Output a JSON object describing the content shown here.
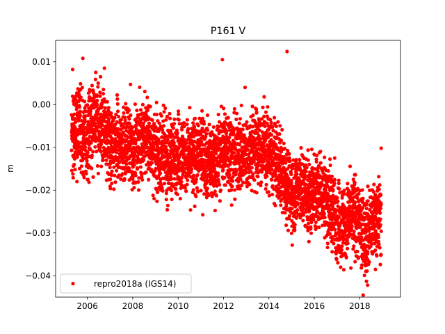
{
  "chart_data": {
    "type": "scatter",
    "title": "P161 V",
    "xlabel": "",
    "ylabel": "m",
    "xlim": [
      2004.6,
      2019.8
    ],
    "ylim": [
      -0.045,
      0.015
    ],
    "x_ticks": [
      2006,
      2008,
      2010,
      2012,
      2014,
      2016,
      2018
    ],
    "x_tick_labels": [
      "2006",
      "2008",
      "2010",
      "2012",
      "2014",
      "2016",
      "2018"
    ],
    "y_ticks": [
      0.01,
      0.0,
      -0.01,
      -0.02,
      -0.03,
      -0.04
    ],
    "y_tick_labels": [
      "0.01",
      "0.00",
      "−0.01",
      "−0.02",
      "−0.03",
      "−0.04"
    ],
    "grid": false,
    "legend_position": "lower-left",
    "series": [
      {
        "name": "repro2018a (IGS14)",
        "color": "#ff0000",
        "marker": "circle",
        "trend": [
          [
            2005.35,
            -0.007
          ],
          [
            2005.6,
            -0.004
          ],
          [
            2005.9,
            -0.009
          ],
          [
            2006.3,
            -0.003
          ],
          [
            2006.7,
            -0.006
          ],
          [
            2007.1,
            -0.011
          ],
          [
            2007.5,
            -0.009
          ],
          [
            2008.0,
            -0.011
          ],
          [
            2008.5,
            -0.007
          ],
          [
            2009.0,
            -0.011
          ],
          [
            2009.5,
            -0.013
          ],
          [
            2010.0,
            -0.011
          ],
          [
            2010.5,
            -0.013
          ],
          [
            2011.0,
            -0.011
          ],
          [
            2011.5,
            -0.014
          ],
          [
            2012.0,
            -0.01
          ],
          [
            2012.5,
            -0.012
          ],
          [
            2013.0,
            -0.011
          ],
          [
            2013.5,
            -0.01
          ],
          [
            2014.0,
            -0.011
          ],
          [
            2014.5,
            -0.015
          ],
          [
            2015.0,
            -0.021
          ],
          [
            2015.4,
            -0.019
          ],
          [
            2015.8,
            -0.022
          ],
          [
            2016.2,
            -0.02
          ],
          [
            2016.6,
            -0.022
          ],
          [
            2017.0,
            -0.027
          ],
          [
            2017.4,
            -0.028
          ],
          [
            2017.8,
            -0.025
          ],
          [
            2018.2,
            -0.031
          ],
          [
            2018.6,
            -0.027
          ],
          [
            2018.95,
            -0.026
          ]
        ],
        "x_range": [
          2005.3,
          2018.95
        ],
        "spread": 0.0045,
        "n_points": 4200,
        "outliers": [
          [
            2005.35,
            0.0082
          ],
          [
            2005.8,
            0.0108
          ],
          [
            2006.75,
            0.0085
          ],
          [
            2011.95,
            0.0105
          ],
          [
            2014.8,
            0.0124
          ],
          [
            2018.95,
            -0.0102
          ],
          [
            2018.35,
            -0.0422
          ],
          [
            2018.3,
            -0.0413
          ],
          [
            2006.1,
            0.0035
          ],
          [
            2007.9,
            0.0047
          ],
          [
            2012.95,
            0.004
          ],
          [
            2016.9,
            -0.0125
          ],
          [
            2017.3,
            -0.0386
          ],
          [
            2018.1,
            -0.0375
          ]
        ]
      }
    ]
  }
}
